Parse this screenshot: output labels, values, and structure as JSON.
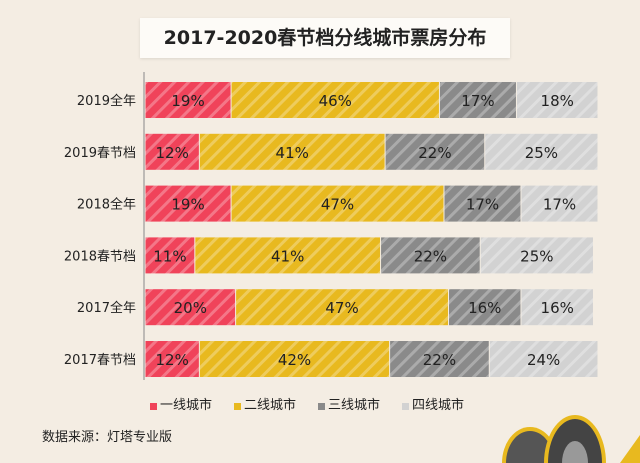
{
  "chart_data": {
    "type": "bar",
    "orientation": "horizontal",
    "stacked": true,
    "title": "2017-2020春节档分线城市票房分布",
    "categories": [
      "2019全年",
      "2019春节档",
      "2018全年",
      "2018春节档",
      "2017全年",
      "2017春节档"
    ],
    "series": [
      {
        "name": "一线城市",
        "color": "#f0435a",
        "values": [
          19,
          12,
          19,
          11,
          20,
          12
        ]
      },
      {
        "name": "二线城市",
        "color": "#e8b91f",
        "values": [
          46,
          41,
          47,
          41,
          47,
          42
        ]
      },
      {
        "name": "三线城市",
        "color": "#8a8a8a",
        "values": [
          17,
          22,
          17,
          22,
          16,
          22
        ]
      },
      {
        "name": "四线城市",
        "color": "#d2d2d2",
        "values": [
          18,
          25,
          17,
          25,
          16,
          24
        ]
      }
    ],
    "value_suffix": "%",
    "legend": "bottom",
    "grid": false
  },
  "source": "数据来源：灯塔专业版"
}
